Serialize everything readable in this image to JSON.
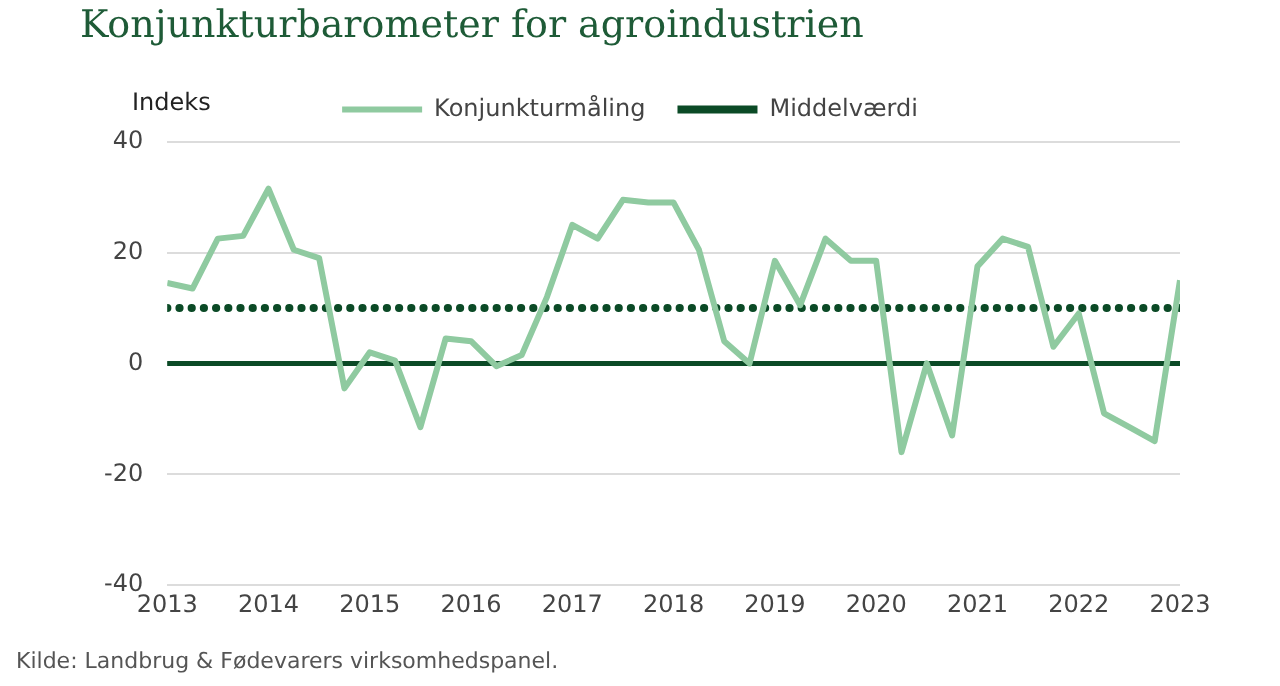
{
  "chart_data": {
    "type": "line",
    "title": "Konjunkturbarometer for agroindustrien",
    "ylabel": "Indeks",
    "annotations": [
      "Kilde: Landbrug & Fødevarers virksomhedspanel."
    ],
    "x": [
      2013,
      2013.25,
      2013.5,
      2013.75,
      2014,
      2014.25,
      2014.5,
      2014.75,
      2015,
      2015.25,
      2015.5,
      2015.75,
      2016,
      2016.25,
      2016.5,
      2016.75,
      2017,
      2017.25,
      2017.5,
      2017.75,
      2018,
      2018.25,
      2018.5,
      2018.75,
      2019,
      2019.25,
      2019.5,
      2019.75,
      2020,
      2020.25,
      2020.5,
      2020.75,
      2021,
      2021.25,
      2021.5,
      2021.75,
      2022,
      2022.25,
      2022.5,
      2022.75,
      2023
    ],
    "series": [
      {
        "name": "Konjunkturmåling",
        "color": "#8fcaa0",
        "line_style": "solid",
        "values": [
          14.5,
          13.5,
          22.5,
          23,
          31.5,
          20.5,
          19,
          -4.5,
          2,
          0.5,
          -11.5,
          4.5,
          4,
          -0.5,
          1.5,
          12,
          25,
          22.5,
          29.5,
          29,
          29,
          20.5,
          4,
          0,
          18.5,
          10.5,
          22.5,
          18.5,
          18.5,
          -16,
          0,
          -13,
          17.5,
          22.5,
          21,
          3,
          9,
          -9,
          -11.5,
          -14,
          15
        ]
      },
      {
        "name": "Middelværdi",
        "color": "#0b4a26",
        "line_style": "dotted",
        "x": [
          2013,
          2023
        ],
        "values": [
          10,
          10
        ]
      }
    ],
    "xlim": [
      2013,
      2023
    ],
    "xticks": [
      2013,
      2014,
      2015,
      2016,
      2017,
      2018,
      2019,
      2020,
      2021,
      2022,
      2023
    ],
    "ylim": [
      -40,
      40
    ],
    "yticks": [
      -40,
      -20,
      0,
      20,
      40
    ],
    "ref_lines": [
      {
        "axis": "y",
        "value": 0,
        "color": "#0b4a26",
        "line_style": "solid"
      }
    ],
    "grid": "y",
    "legend": "top",
    "marker": "none"
  }
}
